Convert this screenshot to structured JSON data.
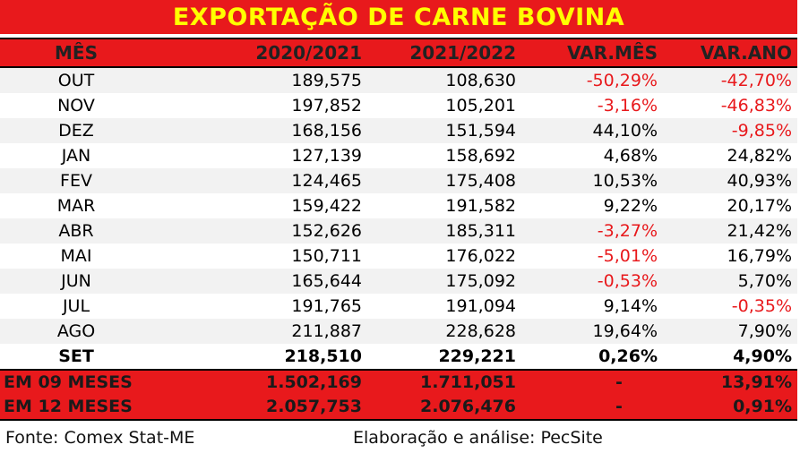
{
  "title": "EXPORTAÇÃO DE CARNE BOVINA",
  "columns": [
    "MÊS",
    "2020/2021",
    "2021/2022",
    "VAR.MÊS",
    "VAR.ANO"
  ],
  "rows": [
    {
      "month": "OUT",
      "y1": "189,575",
      "y2": "108,630",
      "var_mes": "-50,29%",
      "var_ano": "-42,70%"
    },
    {
      "month": "NOV",
      "y1": "197,852",
      "y2": "105,201",
      "var_mes": "-3,16%",
      "var_ano": "-46,83%"
    },
    {
      "month": "DEZ",
      "y1": "168,156",
      "y2": "151,594",
      "var_mes": "44,10%",
      "var_ano": "-9,85%"
    },
    {
      "month": "JAN",
      "y1": "127,139",
      "y2": "158,692",
      "var_mes": "4,68%",
      "var_ano": "24,82%"
    },
    {
      "month": "FEV",
      "y1": "124,465",
      "y2": "175,408",
      "var_mes": "10,53%",
      "var_ano": "40,93%"
    },
    {
      "month": "MAR",
      "y1": "159,422",
      "y2": "191,582",
      "var_mes": "9,22%",
      "var_ano": "20,17%"
    },
    {
      "month": "ABR",
      "y1": "152,626",
      "y2": "185,311",
      "var_mes": "-3,27%",
      "var_ano": "21,42%"
    },
    {
      "month": "MAI",
      "y1": "150,711",
      "y2": "176,022",
      "var_mes": "-5,01%",
      "var_ano": "16,79%"
    },
    {
      "month": "JUN",
      "y1": "165,644",
      "y2": "175,092",
      "var_mes": "-0,53%",
      "var_ano": "5,70%"
    },
    {
      "month": "JUL",
      "y1": "191,765",
      "y2": "191,094",
      "var_mes": "9,14%",
      "var_ano": "-0,35%"
    },
    {
      "month": "AGO",
      "y1": "211,887",
      "y2": "228,628",
      "var_mes": "19,64%",
      "var_ano": "7,90%"
    },
    {
      "month": "SET",
      "y1": "218,510",
      "y2": "229,221",
      "var_mes": "0,26%",
      "var_ano": "4,90%"
    }
  ],
  "totals": [
    {
      "label": "EM 09 MESES",
      "y1": "1.502,169",
      "y2": "1.711,051",
      "var_mes": "-",
      "var_ano": "13,91%"
    },
    {
      "label": "EM 12 MESES",
      "y1": "2.057,753",
      "y2": "2.076,476",
      "var_mes": "-",
      "var_ano": "0,91%"
    }
  ],
  "footer": {
    "source": "Fonte: Comex Stat-ME",
    "credit": "Elaboração e análise: PecSite"
  },
  "colors": {
    "header_red": "#e8191c",
    "title_yellow": "#ffff00",
    "negative_red": "#e8191c"
  }
}
